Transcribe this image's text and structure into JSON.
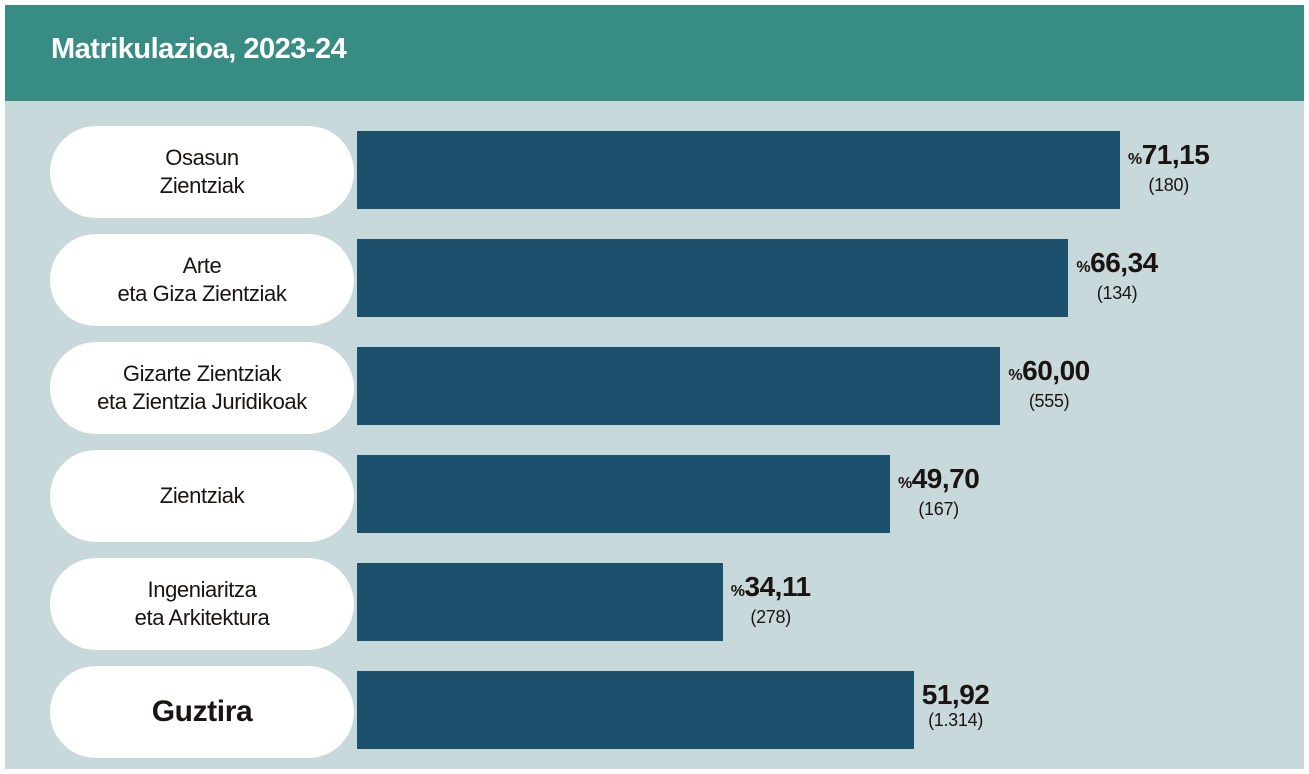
{
  "title": "Matrikulazioa, 2023-24",
  "chart_data": {
    "type": "bar",
    "orientation": "horizontal",
    "title": "Matrikulazioa, 2023-24",
    "value_prefix": "%",
    "xlim": [
      0,
      100
    ],
    "grid": false,
    "colors": {
      "bar": "#1c516d",
      "header": "#378c83",
      "background": "#c8d9db",
      "label_bg": "#ffffff"
    },
    "categories": [
      "Osasun\nZientziak",
      "Arte\neta Giza Zientziak",
      "Gizarte Zientziak\neta Zientzia Juridikoak",
      "Zientziak",
      "Ingeniaritza\neta Arkitektura",
      "Guztira"
    ],
    "values": [
      71.15,
      66.34,
      60.0,
      49.7,
      34.11,
      51.92
    ],
    "value_labels": [
      "71,15",
      "66,34",
      "60,00",
      "49,70",
      "34,11",
      "51,92"
    ],
    "counts": [
      "(180)",
      "(134)",
      "(555)",
      "(167)",
      "(278)",
      "(1.314)"
    ],
    "show_prefix": [
      true,
      true,
      true,
      true,
      true,
      false
    ],
    "bold_category": [
      false,
      false,
      false,
      false,
      false,
      true
    ]
  }
}
